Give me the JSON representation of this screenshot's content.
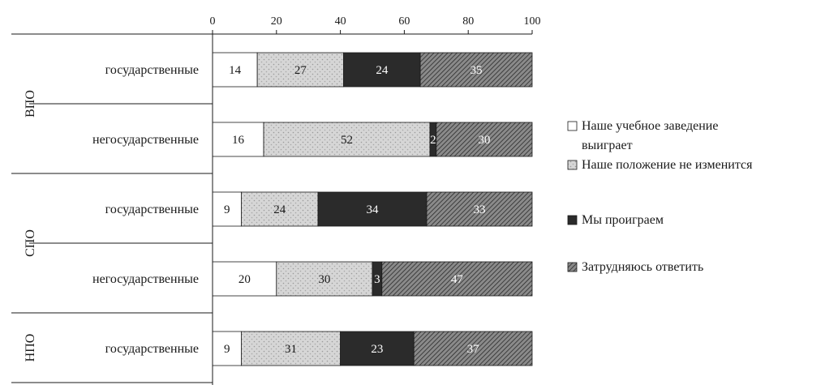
{
  "chart_data": {
    "type": "bar",
    "stacked": true,
    "orientation": "horizontal",
    "xlim": [
      0,
      100
    ],
    "x_ticks": [
      "0",
      "20",
      "40",
      "60",
      "80",
      "100"
    ],
    "grid": false,
    "legend_position": "right",
    "groups": [
      {
        "label": "ВПО",
        "rows": [
          0,
          1
        ]
      },
      {
        "label": "СПО",
        "rows": [
          2,
          3
        ]
      },
      {
        "label": "НПО",
        "rows": [
          4
        ]
      }
    ],
    "categories": [
      "государственные",
      "негосударственные",
      "государственные",
      "негосударственные",
      "государственные"
    ],
    "series": [
      {
        "name": "Наше учебное заведение выиграет",
        "legend_lines": [
          "Наше учебное заведение",
          "выиграет"
        ],
        "values": [
          14,
          16,
          9,
          20,
          9
        ],
        "labels": [
          "14",
          "16",
          "9",
          "20",
          "9"
        ],
        "color": "#ffffff"
      },
      {
        "name": "Наше положение не изменится",
        "legend_lines": [
          "Наше положение не изменится"
        ],
        "values": [
          27,
          52,
          24,
          30,
          31
        ],
        "labels": [
          "27",
          "52",
          "24",
          "30",
          "31"
        ],
        "color": "#d6d6d6"
      },
      {
        "name": "Мы проиграем",
        "legend_lines": [
          "Мы проиграем"
        ],
        "values": [
          24,
          2,
          34,
          3,
          23
        ],
        "labels": [
          "24",
          "2",
          "34",
          "3",
          "23"
        ],
        "color": "#2b2b2b"
      },
      {
        "name": "Затрудняюсь ответить",
        "legend_lines": [
          "Затрудняюсь ответить"
        ],
        "values": [
          35,
          30,
          33,
          47,
          37
        ],
        "labels": [
          "35",
          "30",
          "33",
          "47",
          "37"
        ],
        "color": "#6e6e6e"
      }
    ]
  }
}
